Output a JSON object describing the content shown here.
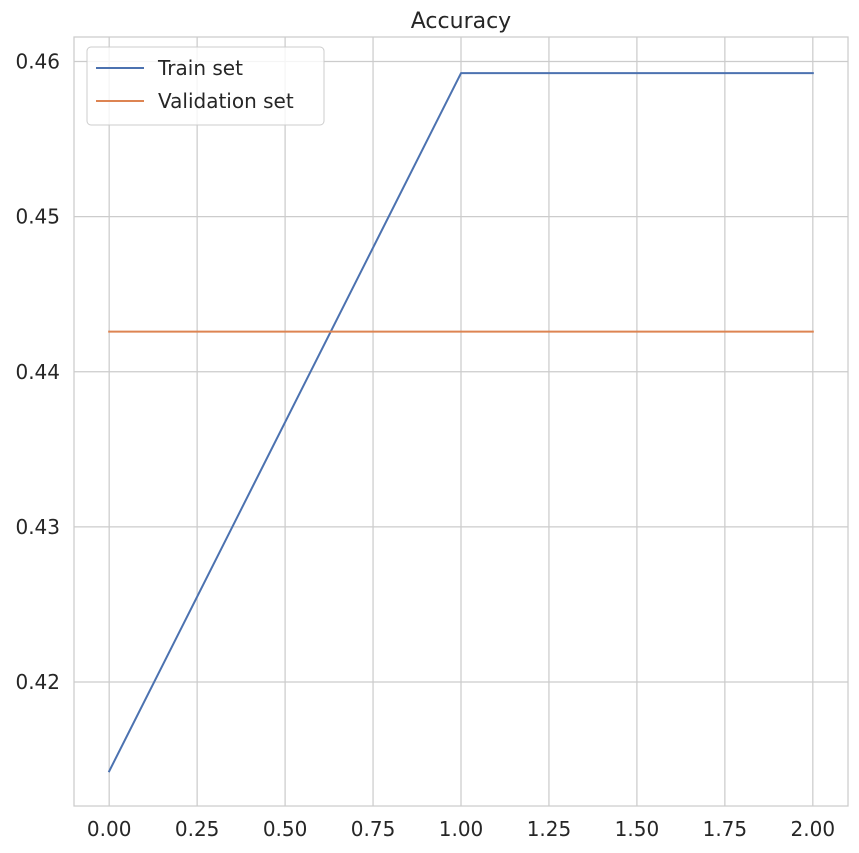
{
  "chart_data": {
    "type": "line",
    "title": "Accuracy",
    "xlabel": "",
    "ylabel": "",
    "x": [
      0,
      1,
      2
    ],
    "series": [
      {
        "name": "Train set",
        "color": "#4c72b0",
        "values": [
          0.41425,
          0.45925,
          0.45925
        ]
      },
      {
        "name": "Validation set",
        "color": "#dd8452",
        "values": [
          0.44259,
          0.44259,
          0.44259
        ]
      }
    ],
    "xlim": [
      -0.1,
      2.1
    ],
    "ylim": [
      0.41201,
      0.46158
    ],
    "xticks": [
      0,
      0.25,
      0.5,
      0.75,
      1.0,
      1.25,
      1.5,
      1.75,
      2.0
    ],
    "xtick_labels": [
      "0.00",
      "0.25",
      "0.50",
      "0.75",
      "1.00",
      "1.25",
      "1.50",
      "1.75",
      "2.00"
    ],
    "yticks": [
      0.42,
      0.43,
      0.44,
      0.45,
      0.46
    ],
    "ytick_labels": [
      "0.42",
      "0.43",
      "0.44",
      "0.45",
      "0.46"
    ],
    "grid": true,
    "legend_position": "top-left",
    "colors": {
      "background": "#ffffff",
      "grid": "#cccccc",
      "spine": "#cccccc",
      "text": "#262626"
    }
  }
}
